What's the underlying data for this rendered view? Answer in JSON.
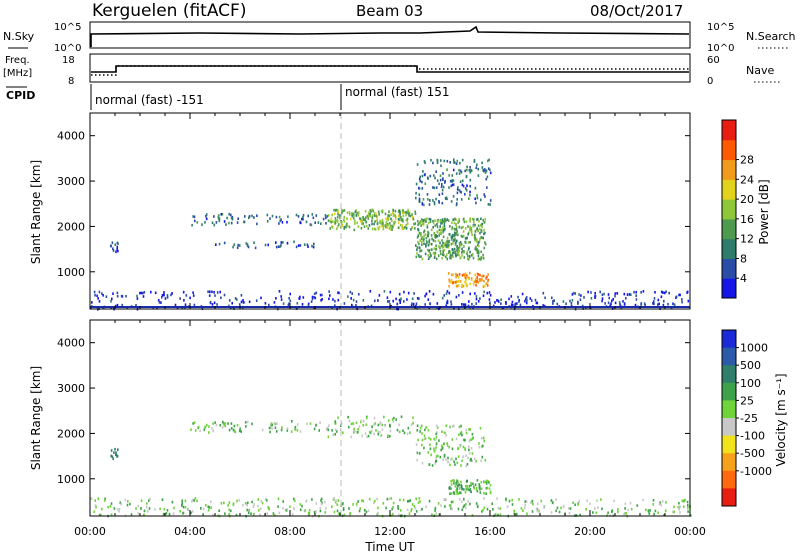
{
  "header": {
    "station": "Kerguelen (fitACF)",
    "beam": "Beam 03",
    "date": "08/Oct/2017"
  },
  "panels": {
    "nsky": {
      "left_label": "N.Sky",
      "left_ticks": [
        "10^5",
        "10^0"
      ],
      "right_label": "N.Search",
      "right_ticks": [
        "10^5",
        "10^0"
      ]
    },
    "freq": {
      "left_label": "Freq.",
      "left_unit": "[MHz]",
      "left_ticks": [
        "18",
        "8"
      ],
      "right_label": "Nave",
      "right_ticks": [
        "60",
        "0"
      ]
    },
    "cpid": {
      "label": "CPID",
      "segments": [
        "normal (fast) -151",
        "normal (fast) 151"
      ]
    }
  },
  "colorbars": {
    "power": {
      "label": "Power [dB]",
      "ticks": [
        "28",
        "24",
        "20",
        "16",
        "12",
        "8",
        "4"
      ],
      "colors": [
        "#1515e6",
        "#2a4ea8",
        "#2e7d6a",
        "#4e9a4e",
        "#8fc73a",
        "#e3d21c",
        "#f29a1a",
        "#ff5a00",
        "#e81e12"
      ]
    },
    "velocity": {
      "label": "Velocity [m s⁻¹]",
      "ticks": [
        "1000",
        "500",
        "100",
        "25",
        "-25",
        "-100",
        "-500",
        "-1000"
      ],
      "colors": [
        "#1a2ad6",
        "#2b5aa8",
        "#2f7f6a",
        "#3da24a",
        "#6fd33a",
        "#c8c8c8",
        "#f2e21c",
        "#f5a21a",
        "#ff6a10",
        "#e81e12"
      ]
    }
  },
  "chart_data": [
    {
      "type": "heatmap",
      "title": "Power",
      "xlabel": "Time UT",
      "ylabel": "Slant Range [km]",
      "xlim": [
        "00:00",
        "24:00"
      ],
      "ylim": [
        180,
        4500
      ],
      "x_ticks": [
        "00:00",
        "04:00",
        "08:00",
        "12:00",
        "16:00",
        "20:00",
        "00:00"
      ],
      "y_ticks": [
        1000,
        2000,
        3000,
        4000
      ],
      "colorbar": "Power [dB]",
      "regions": [
        {
          "t_start": 0.0,
          "t_end": 24.0,
          "r_start": 200,
          "r_end": 600,
          "level": 4
        },
        {
          "t_start": 0.8,
          "t_end": 1.1,
          "r_start": 1450,
          "r_end": 1700,
          "level": 6
        },
        {
          "t_start": 4.0,
          "t_end": 9.5,
          "r_start": 2050,
          "r_end": 2300,
          "level": 8
        },
        {
          "t_start": 5.0,
          "t_end": 9.0,
          "r_start": 1550,
          "r_end": 1700,
          "level": 6
        },
        {
          "t_start": 9.5,
          "t_end": 13.0,
          "r_start": 1950,
          "r_end": 2400,
          "level": 16
        },
        {
          "t_start": 13.0,
          "t_end": 15.8,
          "r_start": 1300,
          "r_end": 2200,
          "level": 14
        },
        {
          "t_start": 14.3,
          "t_end": 16.0,
          "r_start": 700,
          "r_end": 1000,
          "level": 26
        },
        {
          "t_start": 13.0,
          "t_end": 16.0,
          "r_start": 2500,
          "r_end": 3500,
          "level": 8
        }
      ]
    },
    {
      "type": "heatmap",
      "title": "Velocity",
      "xlabel": "Time UT",
      "ylabel": "Slant Range [km]",
      "xlim": [
        "00:00",
        "24:00"
      ],
      "ylim": [
        180,
        4500
      ],
      "x_ticks": [
        "00:00",
        "04:00",
        "08:00",
        "12:00",
        "16:00",
        "20:00",
        "00:00"
      ],
      "y_ticks": [
        1000,
        2000,
        3000,
        4000
      ],
      "colorbar": "Velocity [m s⁻¹]",
      "regions": [
        {
          "t_start": 0.0,
          "t_end": 24.0,
          "r_start": 200,
          "r_end": 600,
          "level": 0
        },
        {
          "t_start": 0.8,
          "t_end": 1.1,
          "r_start": 1450,
          "r_end": 1700,
          "level": 300
        },
        {
          "t_start": 4.0,
          "t_end": 9.5,
          "r_start": 2050,
          "r_end": 2300,
          "level": 0
        },
        {
          "t_start": 9.5,
          "t_end": 13.0,
          "r_start": 1950,
          "r_end": 2400,
          "level": 0
        },
        {
          "t_start": 13.0,
          "t_end": 15.8,
          "r_start": 1300,
          "r_end": 2200,
          "level": 0
        },
        {
          "t_start": 14.3,
          "t_end": 16.0,
          "r_start": 700,
          "r_end": 1000,
          "level": 50
        }
      ]
    }
  ]
}
